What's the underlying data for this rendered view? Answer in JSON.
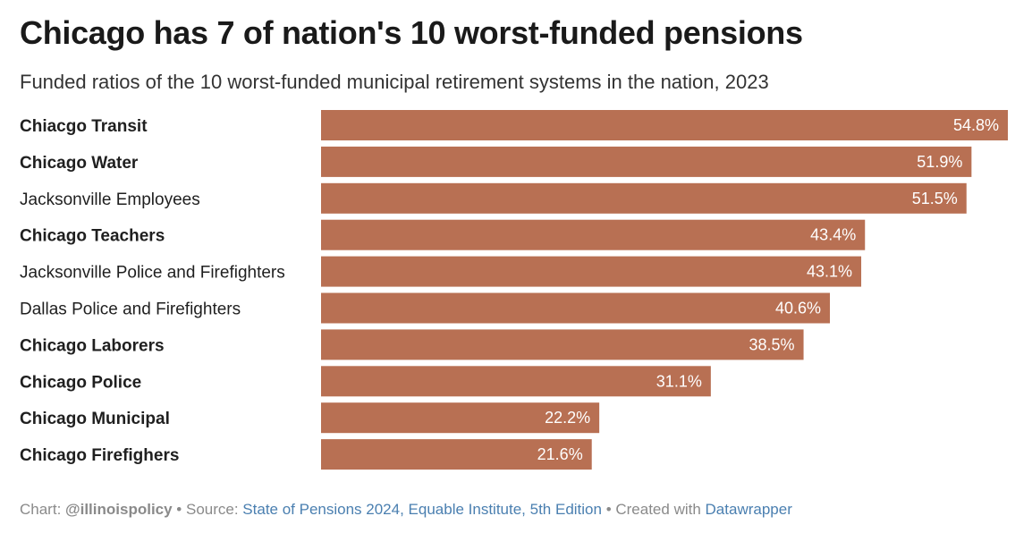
{
  "colors": {
    "bar": "#b87053",
    "text": "#1f1f1f",
    "footer": "#8a8a8a",
    "link": "#4a7fb0"
  },
  "chart_data": {
    "type": "bar",
    "orientation": "horizontal",
    "title": "Chicago has 7 of nation's 10 worst-funded pensions",
    "subtitle": "Funded ratios of the 10 worst-funded municipal retirement systems in the nation, 2023",
    "categories": [
      "Chiacgo Transit",
      "Chicago Water",
      "Jacksonville Employees",
      "Chicago Teachers",
      "Jacksonville Police and Firefighters",
      "Dallas Police and Firefighters",
      "Chicago Laborers",
      "Chicago Police",
      "Chicago Municipal",
      "Chicago Firefighers"
    ],
    "values": [
      54.8,
      51.9,
      51.5,
      43.4,
      43.1,
      40.6,
      38.5,
      31.1,
      22.2,
      21.6
    ],
    "value_labels": [
      "54.8%",
      "51.9%",
      "51.5%",
      "43.4%",
      "43.1%",
      "40.6%",
      "38.5%",
      "31.1%",
      "22.2%",
      "21.6%"
    ],
    "bold_categories": [
      true,
      true,
      false,
      true,
      false,
      false,
      true,
      true,
      true,
      true
    ],
    "xlim": [
      0,
      54.8
    ],
    "xlabel": "",
    "ylabel": "",
    "grid": false,
    "legend": "none"
  },
  "footer": {
    "chart_prefix": "Chart: ",
    "chart_credit": "@illinoispolicy",
    "source_prefix": " • Source: ",
    "source_link": "State of Pensions 2024, Equable Institute, 5th Edition",
    "created_prefix": " • Created with ",
    "created_link": "Datawrapper"
  }
}
